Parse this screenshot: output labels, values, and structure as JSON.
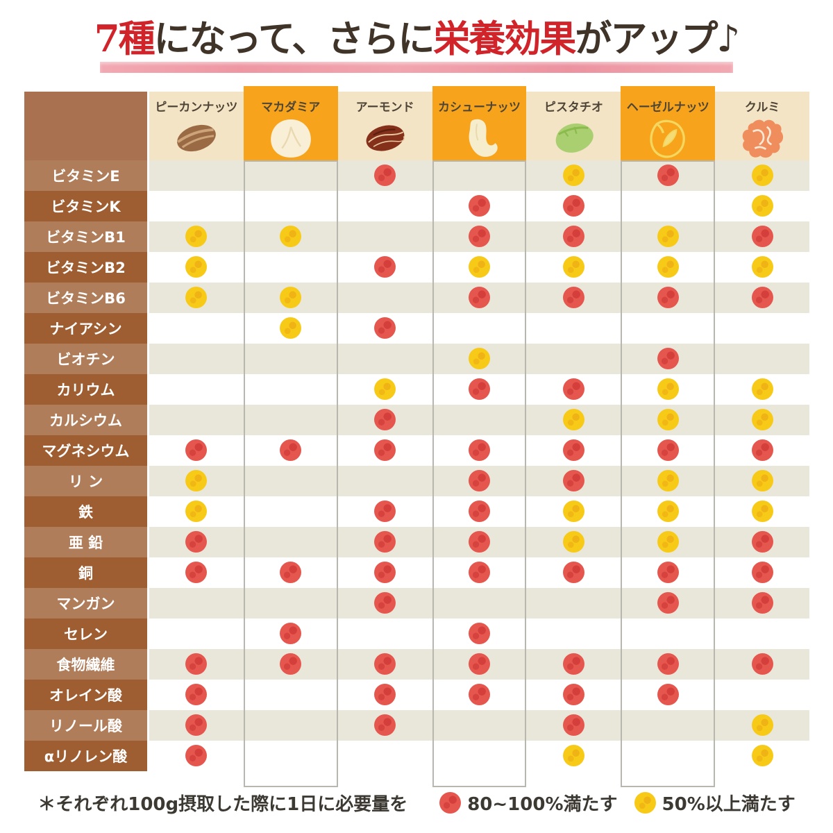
{
  "title": {
    "segments": [
      {
        "text": "7種",
        "style": "red"
      },
      {
        "text": "になって、さらに",
        "style": "dark"
      },
      {
        "text": "栄養効果",
        "style": "red"
      },
      {
        "text": "がアップ♪",
        "style": "dark"
      }
    ],
    "colors": {
      "red": "#d1242a",
      "dark": "#403429",
      "underline_pink": "#f0a2ac"
    }
  },
  "chart_data": {
    "type": "table",
    "title": "7種になって、さらに栄養効果がアップ♪",
    "columns": [
      "ピーカンナッツ",
      "マカダミア",
      "アーモンド",
      "カシューナッツ",
      "ピスタチオ",
      "ヘーゼルナッツ",
      "クルミ"
    ],
    "rows": [
      "ビタミンE",
      "ビタミンK",
      "ビタミンB1",
      "ビタミンB2",
      "ビタミンB6",
      "ナイアシン",
      "ビオチン",
      "カリウム",
      "カルシウム",
      "マグネシウム",
      "リ ン",
      "鉄",
      "亜 鉛",
      "銅",
      "マンガン",
      "セレン",
      "食物繊維",
      "オレイン酸",
      "リノール酸",
      "αリノレン酸"
    ],
    "values": [
      [
        "",
        "",
        "red",
        "",
        "yellow",
        "red",
        "yellow"
      ],
      [
        "",
        "",
        "",
        "red",
        "red",
        "",
        "yellow"
      ],
      [
        "yellow",
        "yellow",
        "",
        "red",
        "red",
        "yellow",
        "red"
      ],
      [
        "yellow",
        "",
        "red",
        "yellow",
        "yellow",
        "yellow",
        "yellow"
      ],
      [
        "yellow",
        "yellow",
        "",
        "red",
        "red",
        "red",
        "red"
      ],
      [
        "",
        "yellow",
        "red",
        "",
        "",
        "",
        ""
      ],
      [
        "",
        "",
        "",
        "yellow",
        "",
        "red",
        ""
      ],
      [
        "",
        "",
        "yellow",
        "red",
        "red",
        "yellow",
        "yellow"
      ],
      [
        "",
        "",
        "red",
        "",
        "yellow",
        "yellow",
        "yellow"
      ],
      [
        "red",
        "red",
        "red",
        "red",
        "red",
        "red",
        "red"
      ],
      [
        "yellow",
        "",
        "",
        "red",
        "red",
        "yellow",
        "yellow"
      ],
      [
        "yellow",
        "",
        "red",
        "red",
        "yellow",
        "yellow",
        "yellow"
      ],
      [
        "red",
        "",
        "red",
        "red",
        "yellow",
        "yellow",
        "red"
      ],
      [
        "red",
        "red",
        "red",
        "red",
        "red",
        "red",
        "red"
      ],
      [
        "",
        "",
        "red",
        "",
        "",
        "red",
        "red"
      ],
      [
        "",
        "red",
        "",
        "red",
        "",
        "",
        ""
      ],
      [
        "red",
        "red",
        "red",
        "red",
        "red",
        "red",
        "red"
      ],
      [
        "red",
        "",
        "red",
        "red",
        "red",
        "red",
        ""
      ],
      [
        "red",
        "",
        "red",
        "",
        "red",
        "",
        "yellow"
      ],
      [
        "red",
        "",
        "",
        "",
        "yellow",
        "",
        "yellow"
      ]
    ],
    "value_legend": {
      "red": "80~100%満たす",
      "yellow": "50%以上満たす"
    }
  },
  "table": {
    "columns_meta": [
      {
        "icon": "pecan-icon",
        "header": "cream",
        "boxed": false
      },
      {
        "icon": "macadamia-icon",
        "header": "orange",
        "boxed": true
      },
      {
        "icon": "almond-icon",
        "header": "cream",
        "boxed": false
      },
      {
        "icon": "cashew-icon",
        "header": "orange",
        "boxed": true
      },
      {
        "icon": "pistachio-icon",
        "header": "cream",
        "boxed": false
      },
      {
        "icon": "hazelnut-icon",
        "header": "orange",
        "boxed": true
      },
      {
        "icon": "walnut-icon",
        "header": "cream",
        "boxed": false
      }
    ],
    "colors": {
      "header_cream": "#f3e4c6",
      "header_orange": "#f7a41c",
      "corner_brown": "#a97150",
      "row_label_light": "#b07d5a",
      "row_label_dark": "#9e5e32",
      "row_beige": "#e9e7da",
      "row_white": "#ffffff",
      "box_border": "#b7b7af",
      "dot_red": "#e5564e",
      "dot_yellow": "#f8ca18"
    }
  },
  "legend": {
    "note": "＊それぞれ100g摂取した際に1日に必要量を",
    "items": [
      {
        "dot": "red",
        "label": "80~100%満たす"
      },
      {
        "dot": "yellow",
        "label": "50%以上満たす"
      }
    ]
  }
}
